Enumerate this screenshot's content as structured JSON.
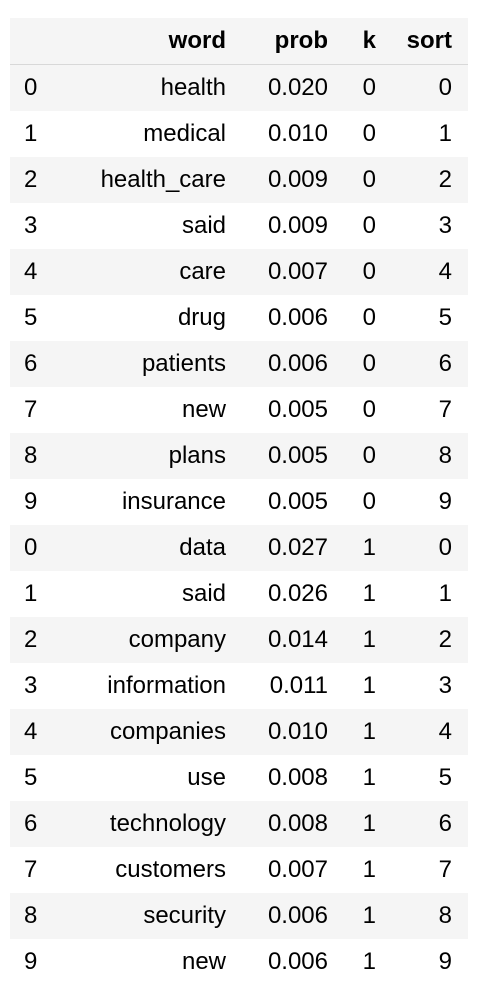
{
  "table": {
    "headers": {
      "index": "",
      "word": "word",
      "prob": "prob",
      "k": "k",
      "sort": "sort"
    },
    "rows": [
      {
        "index": "0",
        "word": "health",
        "prob": "0.020",
        "k": "0",
        "sort": "0"
      },
      {
        "index": "1",
        "word": "medical",
        "prob": "0.010",
        "k": "0",
        "sort": "1"
      },
      {
        "index": "2",
        "word": "health_care",
        "prob": "0.009",
        "k": "0",
        "sort": "2"
      },
      {
        "index": "3",
        "word": "said",
        "prob": "0.009",
        "k": "0",
        "sort": "3"
      },
      {
        "index": "4",
        "word": "care",
        "prob": "0.007",
        "k": "0",
        "sort": "4"
      },
      {
        "index": "5",
        "word": "drug",
        "prob": "0.006",
        "k": "0",
        "sort": "5"
      },
      {
        "index": "6",
        "word": "patients",
        "prob": "0.006",
        "k": "0",
        "sort": "6"
      },
      {
        "index": "7",
        "word": "new",
        "prob": "0.005",
        "k": "0",
        "sort": "7"
      },
      {
        "index": "8",
        "word": "plans",
        "prob": "0.005",
        "k": "0",
        "sort": "8"
      },
      {
        "index": "9",
        "word": "insurance",
        "prob": "0.005",
        "k": "0",
        "sort": "9"
      },
      {
        "index": "0",
        "word": "data",
        "prob": "0.027",
        "k": "1",
        "sort": "0"
      },
      {
        "index": "1",
        "word": "said",
        "prob": "0.026",
        "k": "1",
        "sort": "1"
      },
      {
        "index": "2",
        "word": "company",
        "prob": "0.014",
        "k": "1",
        "sort": "2"
      },
      {
        "index": "3",
        "word": "information",
        "prob": "0.011",
        "k": "1",
        "sort": "3"
      },
      {
        "index": "4",
        "word": "companies",
        "prob": "0.010",
        "k": "1",
        "sort": "4"
      },
      {
        "index": "5",
        "word": "use",
        "prob": "0.008",
        "k": "1",
        "sort": "5"
      },
      {
        "index": "6",
        "word": "technology",
        "prob": "0.008",
        "k": "1",
        "sort": "6"
      },
      {
        "index": "7",
        "word": "customers",
        "prob": "0.007",
        "k": "1",
        "sort": "7"
      },
      {
        "index": "8",
        "word": "security",
        "prob": "0.006",
        "k": "1",
        "sort": "8"
      },
      {
        "index": "9",
        "word": "new",
        "prob": "0.006",
        "k": "1",
        "sort": "9"
      }
    ]
  }
}
